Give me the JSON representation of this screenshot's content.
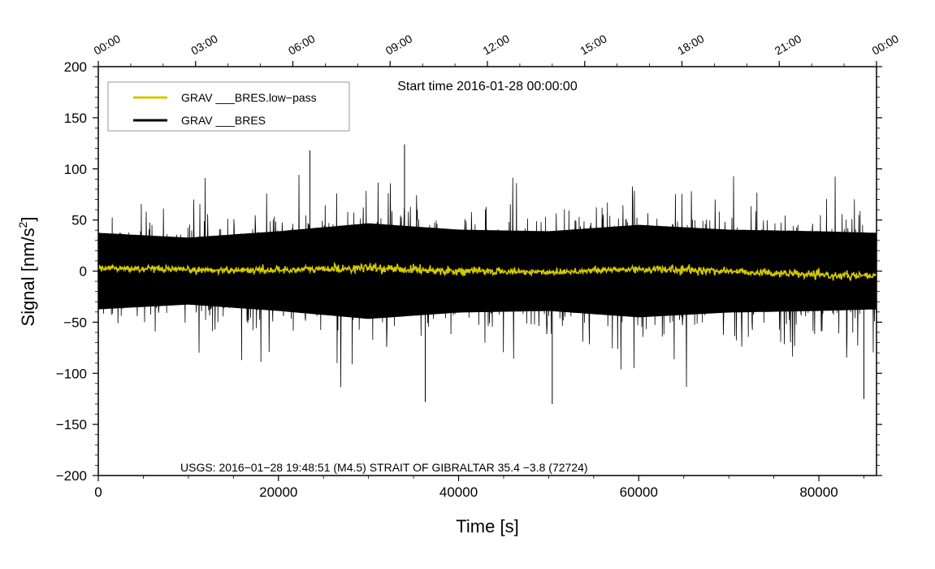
{
  "chart_data": {
    "type": "line",
    "title": "Start time 2016-01-28 00:00:00",
    "xlabel": "Time [s]",
    "ylabel_main": "Signal [nm/s",
    "ylabel_sup": "2",
    "ylabel_end": "]",
    "xlim": [
      0,
      86400
    ],
    "ylim": [
      -200,
      200
    ],
    "x_ticks": [
      0,
      20000,
      40000,
      60000,
      80000
    ],
    "x_tick_labels": [
      "0",
      "20000",
      "40000",
      "60000",
      "80000"
    ],
    "y_ticks": [
      -200,
      -150,
      -100,
      -50,
      0,
      50,
      100,
      150,
      200
    ],
    "y_tick_labels": [
      "−200",
      "−150",
      "−100",
      "−50",
      "0",
      "50",
      "100",
      "150",
      "200"
    ],
    "top_axis": {
      "ticks": [
        0,
        10800,
        21600,
        32400,
        43200,
        54000,
        64800,
        75600,
        86400
      ],
      "labels": [
        "00:00",
        "03:00",
        "06:00",
        "09:00",
        "12:00",
        "15:00",
        "18:00",
        "21:00",
        "00:00"
      ]
    },
    "legend_position": "top-left",
    "series": [
      {
        "name": "GRAV ___BRES.low−pass",
        "color": "#d4c800",
        "description": "low-pass filtered, hovering near 0",
        "envelope_x": [
          0,
          10000,
          20000,
          30000,
          40000,
          50000,
          60000,
          70000,
          80000,
          86400
        ],
        "envelope_center": [
          3,
          1,
          1,
          3,
          0,
          -1,
          2,
          0,
          -4,
          -5
        ],
        "envelope_amplitude": [
          3,
          2.5,
          3,
          3.5,
          3,
          2.5,
          3.5,
          3,
          3,
          3
        ]
      },
      {
        "name": "GRAV ___BRES",
        "color": "#000000",
        "description": "raw signal, noisy",
        "envelope_x": [
          0,
          10000,
          20000,
          30000,
          40000,
          50000,
          60000,
          70000,
          80000,
          86400
        ],
        "envelope_center": [
          0,
          0,
          0,
          0,
          0,
          0,
          0,
          0,
          0,
          0
        ],
        "envelope_amplitude": [
          48,
          42,
          50,
          60,
          52,
          50,
          58,
          52,
          50,
          48
        ],
        "peak_values": [
          {
            "x": 34000,
            "y": 124
          },
          {
            "x": 23500,
            "y": 118
          },
          {
            "x": 50400,
            "y": -130
          },
          {
            "x": 85000,
            "y": -125
          },
          {
            "x": 36300,
            "y": -128
          }
        ]
      }
    ],
    "annotation": "USGS: 2016−01−28 19:48:51 (M4.5) STRAIT OF GIBRALTAR 35.4 −3.8 (72724)"
  }
}
